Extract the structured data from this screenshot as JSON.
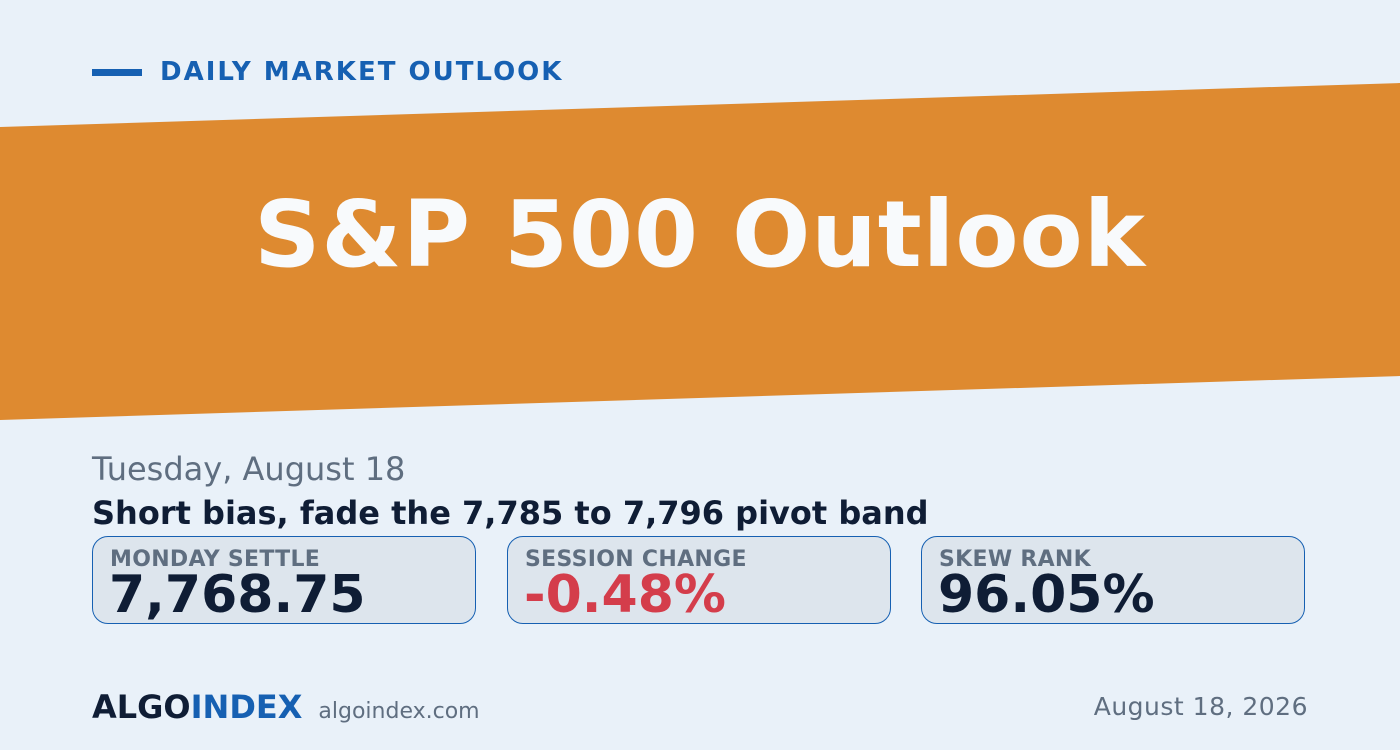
{
  "colors": {
    "background": "#e9f1f9",
    "accent_blue": "#1660b2",
    "banner_orange": "#de8a30",
    "text_dark": "#0f1d35",
    "text_muted": "#5f6e80",
    "negative_red": "#d43d4b",
    "card_fill": "#dde5ed"
  },
  "eyebrow": {
    "label": "DAILY MARKET OUTLOOK"
  },
  "banner": {
    "title": "S&P 500 Outlook"
  },
  "summary": {
    "date": "Tuesday, August 18",
    "headline": "Short bias, fade the 7,785 to 7,796 pivot band"
  },
  "stats": [
    {
      "label": "MONDAY SETTLE",
      "value": "7,768.75",
      "sentiment": "neutral"
    },
    {
      "label": "SESSION CHANGE",
      "value": "-0.48%",
      "sentiment": "negative"
    },
    {
      "label": "SKEW RANK",
      "value": "96.05%",
      "sentiment": "neutral"
    }
  ],
  "footer": {
    "brand_part1": "ALGO",
    "brand_part2": "INDEX",
    "url": "algoindex.com",
    "date": "August 18, 2026"
  }
}
